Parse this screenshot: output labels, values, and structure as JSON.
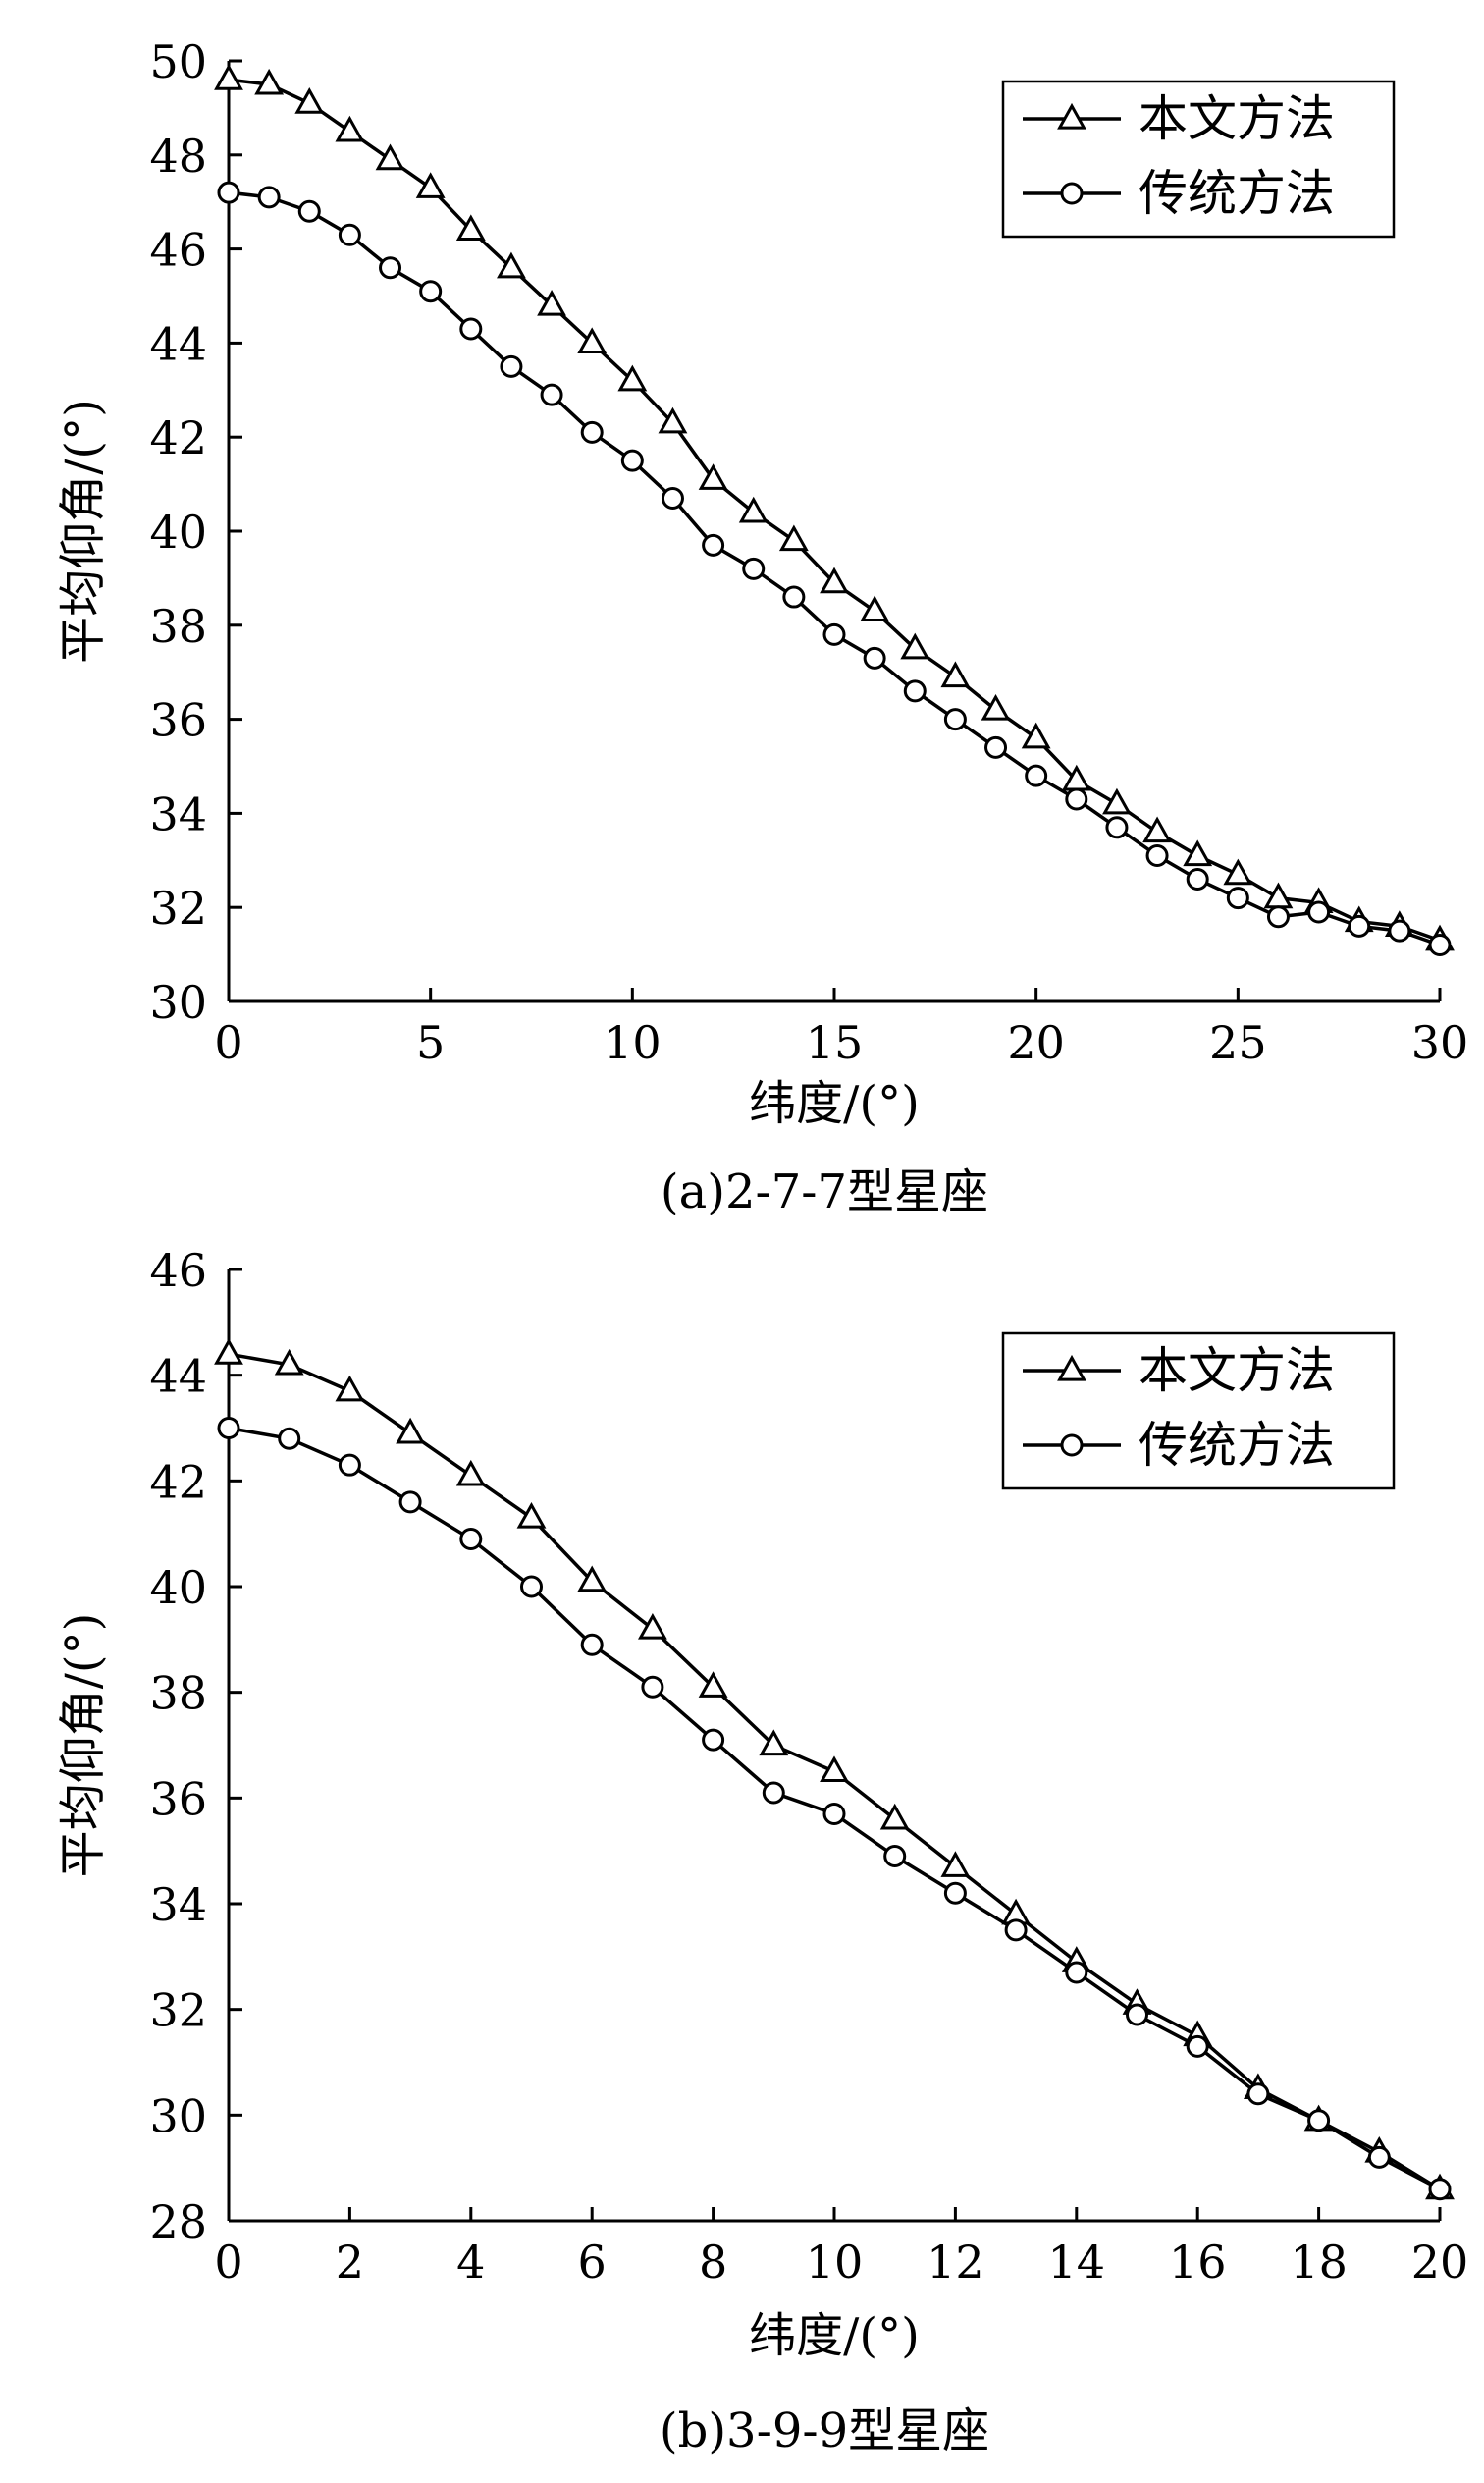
{
  "chart_data": [
    {
      "type": "line",
      "caption": "(a)2-7-7型星座",
      "xlabel": "纬度/(°)",
      "ylabel": "平均仰角/(°)",
      "xlim": [
        0,
        30
      ],
      "ylim": [
        30,
        50
      ],
      "xticks": [
        0,
        5,
        10,
        15,
        20,
        25,
        30
      ],
      "yticks": [
        30,
        32,
        34,
        36,
        38,
        40,
        42,
        44,
        46,
        48,
        50
      ],
      "grid": false,
      "legend_position": "top-right",
      "x": [
        0,
        1,
        2,
        3,
        4,
        5,
        6,
        7,
        8,
        9,
        10,
        11,
        12,
        13,
        14,
        15,
        16,
        17,
        18,
        19,
        20,
        21,
        22,
        23,
        24,
        25,
        26,
        27,
        28,
        29,
        30
      ],
      "series": [
        {
          "name": "本文方法",
          "marker": "triangle",
          "values": [
            49.6,
            49.5,
            49.1,
            48.5,
            47.9,
            47.3,
            46.4,
            45.6,
            44.8,
            44.0,
            43.2,
            42.3,
            41.1,
            40.4,
            39.8,
            38.9,
            38.3,
            37.5,
            36.9,
            36.2,
            35.6,
            34.7,
            34.2,
            33.6,
            33.1,
            32.7,
            32.2,
            32.1,
            31.7,
            31.6,
            31.3
          ]
        },
        {
          "name": "传统方法",
          "marker": "circle",
          "values": [
            47.2,
            47.1,
            46.8,
            46.3,
            45.6,
            45.1,
            44.3,
            43.5,
            42.9,
            42.1,
            41.5,
            40.7,
            39.7,
            39.2,
            38.6,
            37.8,
            37.3,
            36.6,
            36.0,
            35.4,
            34.8,
            34.3,
            33.7,
            33.1,
            32.6,
            32.2,
            31.8,
            31.9,
            31.6,
            31.5,
            31.2
          ]
        }
      ]
    },
    {
      "type": "line",
      "caption": "(b)3-9-9型星座",
      "xlabel": "纬度/(°)",
      "ylabel": "平均仰角/(°)",
      "xlim": [
        0,
        20
      ],
      "ylim": [
        28,
        46
      ],
      "xticks": [
        0,
        2,
        4,
        6,
        8,
        10,
        12,
        14,
        16,
        18,
        20
      ],
      "yticks": [
        28,
        30,
        32,
        34,
        36,
        38,
        40,
        42,
        44,
        46
      ],
      "grid": false,
      "legend_position": "top-right",
      "x": [
        0,
        1,
        2,
        3,
        4,
        5,
        6,
        7,
        8,
        9,
        10,
        11,
        12,
        13,
        14,
        15,
        16,
        17,
        18,
        19,
        20
      ],
      "series": [
        {
          "name": "本文方法",
          "marker": "triangle",
          "values": [
            44.4,
            44.2,
            43.7,
            42.9,
            42.1,
            41.3,
            40.1,
            39.2,
            38.1,
            37.0,
            36.5,
            35.6,
            34.7,
            33.8,
            32.9,
            32.1,
            31.5,
            30.5,
            29.9,
            29.3,
            28.6
          ]
        },
        {
          "name": "传统方法",
          "marker": "circle",
          "values": [
            43.0,
            42.8,
            42.3,
            41.6,
            40.9,
            40.0,
            38.9,
            38.1,
            37.1,
            36.1,
            35.7,
            34.9,
            34.2,
            33.5,
            32.7,
            31.9,
            31.3,
            30.4,
            29.9,
            29.2,
            28.6
          ]
        }
      ]
    }
  ]
}
